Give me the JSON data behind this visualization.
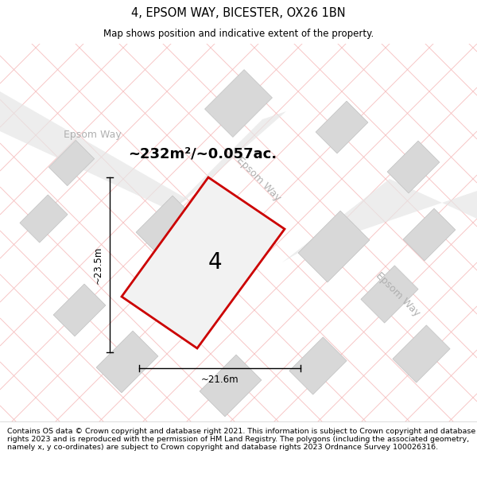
{
  "title": "4, EPSOM WAY, BICESTER, OX26 1BN",
  "subtitle": "Map shows position and indicative extent of the property.",
  "footer": "Contains OS data © Crown copyright and database right 2021. This information is subject to Crown copyright and database rights 2023 and is reproduced with the permission of HM Land Registry. The polygons (including the associated geometry, namely x, y co-ordinates) are subject to Crown copyright and database rights 2023 Ordnance Survey 100026316.",
  "area_text": "~232m²/~0.057ac.",
  "number_label": "4",
  "width_label": "~21.6m",
  "height_label": "~23.5m",
  "plot_outline_color": "#cc0000",
  "road_line_color": "#f5b8b8",
  "road_label_color": "#b0b0b0",
  "building_fill": "#d8d8d8",
  "building_edge": "#c0c0c0",
  "road_band_color": "#e8e8e8",
  "title_fontsize": 10.5,
  "subtitle_fontsize": 8.5,
  "footer_fontsize": 6.8,
  "area_fontsize": 13,
  "number_fontsize": 20,
  "dim_fontsize": 8.5,
  "road_label_fontsize": 9
}
